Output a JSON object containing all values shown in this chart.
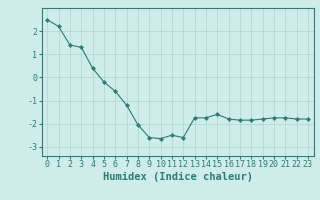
{
  "xlabel": "Humidex (Indice chaleur)",
  "x": [
    0,
    1,
    2,
    3,
    4,
    5,
    6,
    7,
    8,
    9,
    10,
    11,
    12,
    13,
    14,
    15,
    16,
    17,
    18,
    19,
    20,
    21,
    22,
    23
  ],
  "y": [
    2.5,
    2.2,
    1.4,
    1.3,
    0.4,
    -0.2,
    -0.6,
    -1.2,
    -2.05,
    -2.6,
    -2.65,
    -2.5,
    -2.6,
    -1.75,
    -1.75,
    -1.6,
    -1.8,
    -1.85,
    -1.85,
    -1.8,
    -1.75,
    -1.75,
    -1.8,
    -1.8
  ],
  "line_color": "#2e7d6e",
  "marker": "D",
  "marker_size": 2.0,
  "bg_color": "#ceecea",
  "grid_color": "#aed4d0",
  "ylim": [
    -3.4,
    3.0
  ],
  "yticks": [
    -3,
    -2,
    -1,
    0,
    1,
    2
  ],
  "xlim": [
    -0.5,
    23.5
  ],
  "tick_fontsize": 6,
  "label_fontsize": 7.5
}
